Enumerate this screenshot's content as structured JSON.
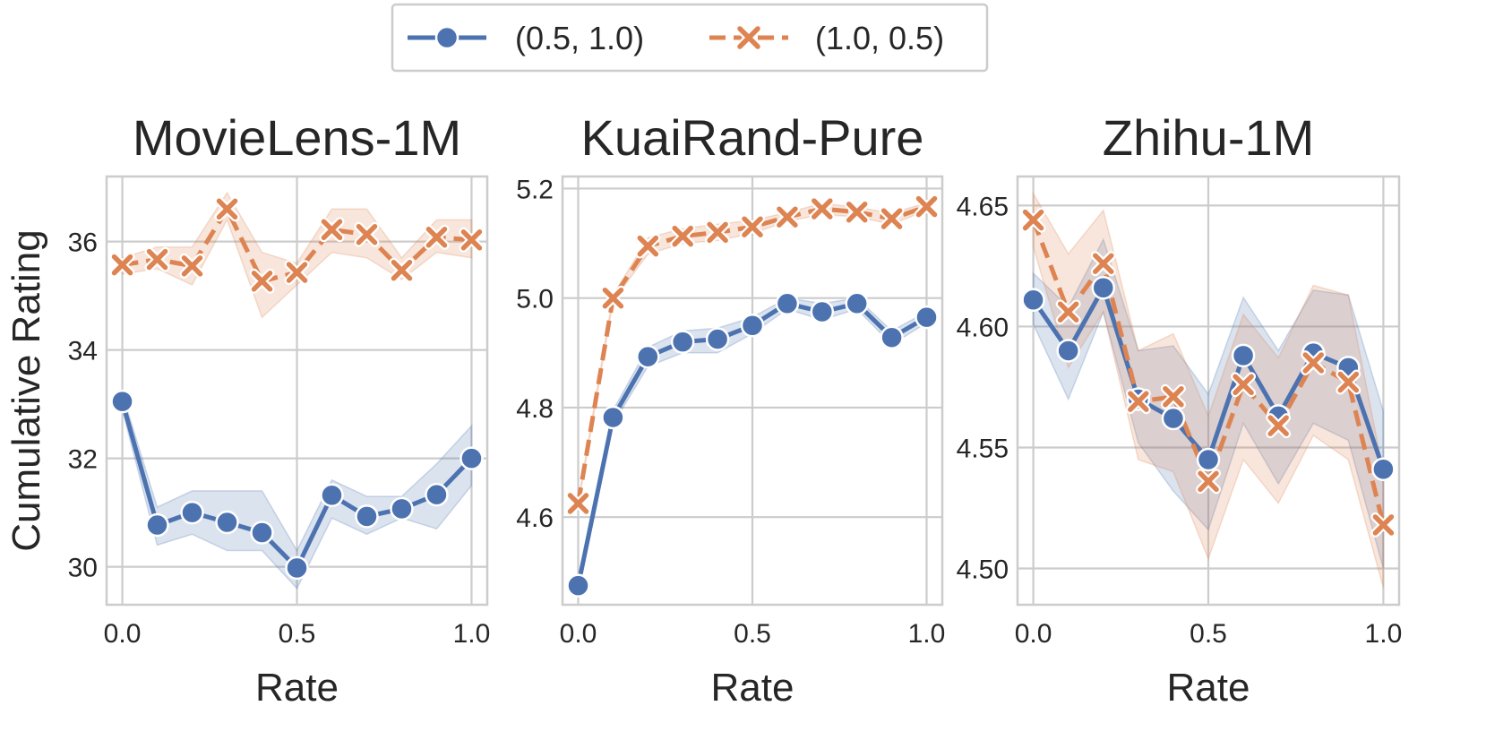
{
  "legend": {
    "entries": [
      {
        "label": "(0.5, 1.0)",
        "color": "#4c72b0",
        "marker": "circle",
        "line": "solid"
      },
      {
        "label": "(1.0, 0.5)",
        "color": "#dd8452",
        "marker": "x",
        "line": "dashed"
      }
    ],
    "placement": "top-center"
  },
  "chart_data": [
    {
      "type": "line",
      "title": "MovieLens-1M",
      "xlabel": "Rate",
      "ylabel": "Cumulative Rating",
      "x": [
        0.0,
        0.1,
        0.2,
        0.3,
        0.4,
        0.5,
        0.6,
        0.7,
        0.8,
        0.9,
        1.0
      ],
      "xticks": [
        "0.0",
        "0.5",
        "1.0"
      ],
      "yticks": [
        "30",
        "32",
        "34",
        "36"
      ],
      "ytick_values": [
        30,
        32,
        34,
        36
      ],
      "xlim": [
        -0.045,
        1.045
      ],
      "ylim": [
        29.3,
        37.2
      ],
      "grid": true,
      "series": [
        {
          "name": "(0.5, 1.0)",
          "color": "#4c72b0",
          "values": [
            33.05,
            30.77,
            31.0,
            30.82,
            30.63,
            29.98,
            31.32,
            30.93,
            31.07,
            31.33,
            32.0
          ],
          "lower": [
            32.9,
            30.4,
            30.6,
            30.3,
            30.3,
            29.6,
            30.9,
            30.6,
            30.9,
            30.7,
            31.5
          ],
          "upper": [
            33.2,
            31.1,
            31.4,
            31.4,
            31.4,
            30.3,
            31.6,
            31.3,
            31.3,
            31.9,
            32.6
          ]
        },
        {
          "name": "(1.0, 0.5)",
          "color": "#dd8452",
          "values": [
            35.57,
            35.67,
            35.55,
            36.6,
            35.27,
            35.43,
            36.22,
            36.13,
            35.47,
            36.08,
            36.03
          ],
          "lower": [
            35.4,
            35.5,
            35.2,
            36.4,
            34.6,
            35.2,
            35.8,
            35.7,
            35.3,
            35.8,
            35.7
          ],
          "upper": [
            35.7,
            35.9,
            35.9,
            36.9,
            35.8,
            35.6,
            36.6,
            36.6,
            35.7,
            36.4,
            36.4
          ]
        }
      ]
    },
    {
      "type": "line",
      "title": "KuaiRand-Pure",
      "xlabel": "Rate",
      "ylabel": "",
      "x": [
        0.0,
        0.1,
        0.2,
        0.3,
        0.4,
        0.5,
        0.6,
        0.7,
        0.8,
        0.9,
        1.0
      ],
      "xticks": [
        "0.0",
        "0.5",
        "1.0"
      ],
      "yticks": [
        "4.6",
        "4.8",
        "5.0",
        "5.2"
      ],
      "ytick_values": [
        4.6,
        4.8,
        5.0,
        5.2
      ],
      "xlim": [
        -0.045,
        1.045
      ],
      "ylim": [
        4.44,
        5.222
      ],
      "grid": true,
      "series": [
        {
          "name": "(0.5, 1.0)",
          "color": "#4c72b0",
          "values": [
            4.475,
            4.782,
            4.893,
            4.92,
            4.925,
            4.95,
            4.99,
            4.975,
            4.99,
            4.928,
            4.965
          ],
          "lower": [
            4.47,
            4.77,
            4.875,
            4.9,
            4.9,
            4.935,
            4.98,
            4.96,
            4.98,
            4.915,
            4.955
          ],
          "upper": [
            4.48,
            4.795,
            4.91,
            4.94,
            4.945,
            4.965,
            5.0,
            4.99,
            5.0,
            4.94,
            4.975
          ]
        },
        {
          "name": "(1.0, 0.5)",
          "color": "#dd8452",
          "values": [
            4.625,
            5.0,
            5.095,
            5.113,
            5.12,
            5.13,
            5.148,
            5.163,
            5.157,
            5.145,
            5.167
          ],
          "lower": [
            4.62,
            4.995,
            5.08,
            5.1,
            5.105,
            5.118,
            5.14,
            5.153,
            5.148,
            5.135,
            5.16
          ],
          "upper": [
            4.63,
            5.005,
            5.11,
            5.127,
            5.135,
            5.142,
            5.156,
            5.173,
            5.166,
            5.155,
            5.174
          ]
        }
      ]
    },
    {
      "type": "line",
      "title": "Zhihu-1M",
      "xlabel": "Rate",
      "ylabel": "",
      "x": [
        0.0,
        0.1,
        0.2,
        0.3,
        0.4,
        0.5,
        0.6,
        0.7,
        0.8,
        0.9,
        1.0
      ],
      "xticks": [
        "0.0",
        "0.5",
        "1.0"
      ],
      "yticks": [
        "4.50",
        "4.55",
        "4.60",
        "4.65"
      ],
      "ytick_values": [
        4.5,
        4.55,
        4.6,
        4.65
      ],
      "xlim": [
        -0.045,
        1.045
      ],
      "ylim": [
        4.485,
        4.662
      ],
      "grid": true,
      "series": [
        {
          "name": "(0.5, 1.0)",
          "color": "#4c72b0",
          "values": [
            4.611,
            4.59,
            4.616,
            4.57,
            4.562,
            4.545,
            4.588,
            4.563,
            4.589,
            4.583,
            4.541
          ],
          "lower": [
            4.601,
            4.57,
            4.606,
            4.552,
            4.532,
            4.516,
            4.56,
            4.535,
            4.56,
            4.553,
            4.5
          ],
          "upper": [
            4.622,
            4.608,
            4.636,
            4.59,
            4.592,
            4.572,
            4.612,
            4.59,
            4.615,
            4.613,
            4.565
          ]
        },
        {
          "name": "(1.0, 0.5)",
          "color": "#dd8452",
          "values": [
            4.644,
            4.606,
            4.626,
            4.569,
            4.571,
            4.536,
            4.576,
            4.559,
            4.585,
            4.577,
            4.518
          ],
          "lower": [
            4.633,
            4.583,
            4.606,
            4.545,
            4.54,
            4.504,
            4.545,
            4.527,
            4.555,
            4.545,
            4.492
          ],
          "upper": [
            4.655,
            4.63,
            4.648,
            4.59,
            4.597,
            4.563,
            4.605,
            4.587,
            4.617,
            4.613,
            4.54
          ]
        }
      ]
    }
  ]
}
